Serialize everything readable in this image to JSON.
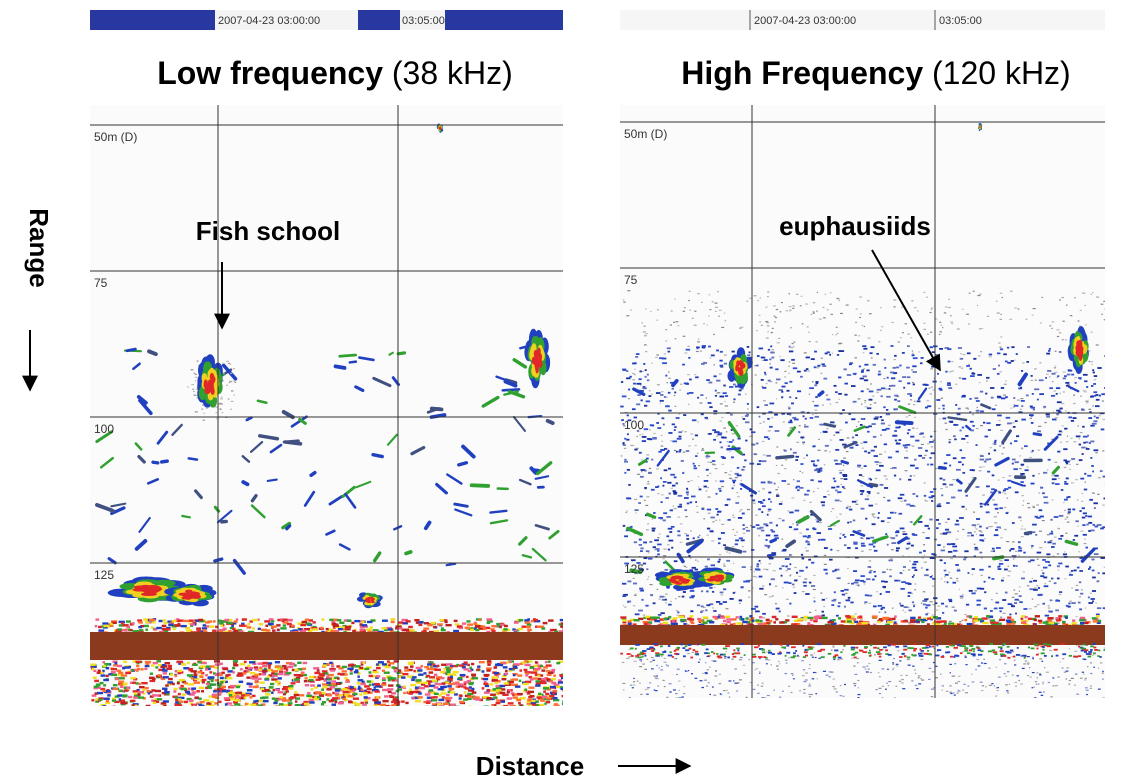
{
  "left_panel": {
    "title_bold": "Low frequency",
    "title_rest": "(38 kHz)",
    "timestamp": "2007-04-23 03:00:00",
    "time_mark": "03:05:00",
    "depth_labels": [
      "50m (D)",
      "75",
      "100",
      "125"
    ],
    "annotation": "Fish school"
  },
  "right_panel": {
    "title_bold": "High Frequency",
    "title_rest": "(120 kHz)",
    "timestamp": "2007-04-23 03:00:00",
    "time_mark": "03:05:00",
    "depth_labels": [
      "50m (D)",
      "75",
      "100",
      "125"
    ],
    "annotation": "euphausiids"
  },
  "axis_labels": {
    "range": "Range",
    "distance": "Distance"
  }
}
